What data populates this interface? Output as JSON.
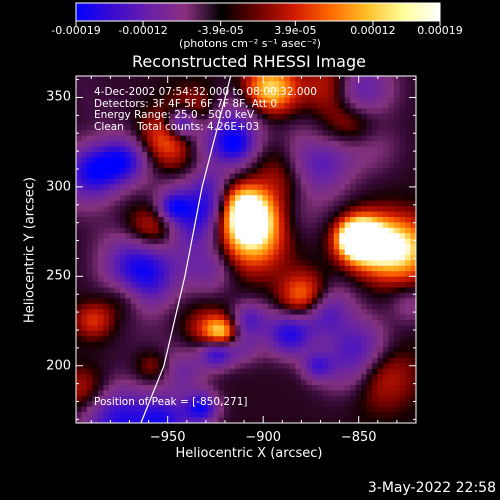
{
  "colorbar": {
    "ticks": [
      "-0.00019",
      "-0.00012",
      "-3.9e-05",
      "3.9e-05",
      "0.00012",
      "0.00019"
    ],
    "units": "(photons cm⁻² s⁻¹ asec⁻²)",
    "range": [
      -0.00019,
      0.00019
    ],
    "stops": [
      "#0000ff",
      "#3a0bd0",
      "#6a1fa8",
      "#8a2f80",
      "#000000",
      "#6e0000",
      "#d11a00",
      "#ff6a00",
      "#ffc02a",
      "#ffff9a",
      "#ffffff"
    ]
  },
  "chart_data": {
    "type": "heatmap",
    "title": "Reconstructed RHESSI Image",
    "xlabel": "Heliocentric X (arcsec)",
    "ylabel": "Heliocentric Y (arcsec)",
    "xlim": [
      -998,
      -820
    ],
    "ylim": [
      168,
      362
    ],
    "xticks": [
      -950,
      -900,
      -850
    ],
    "yticks": [
      200,
      250,
      300,
      350
    ],
    "xtick_labels": [
      "−950",
      "−900",
      "−850"
    ],
    "ytick_labels": [
      "200",
      "250",
      "300",
      "350"
    ],
    "annotations": [
      "4-Dec-2002 07:54:32.000 to 08:00:32.000",
      "Detectors: 3F 4F 5F 6F 7F 8F, Att 0",
      "Energy Range: 25.0 - 50.0 keV",
      "Clean    Total counts: 4.26E+03"
    ],
    "peak_label": "Position of Peak = [-850,271]",
    "peak": [
      -850,
      271
    ],
    "limb_points": [
      [
        -964,
        168
      ],
      [
        -952,
        200
      ],
      [
        -941,
        250
      ],
      [
        -932,
        300
      ],
      [
        -917,
        362
      ]
    ]
  },
  "footer": {
    "timestamp": "3-May-2022 22:58"
  }
}
